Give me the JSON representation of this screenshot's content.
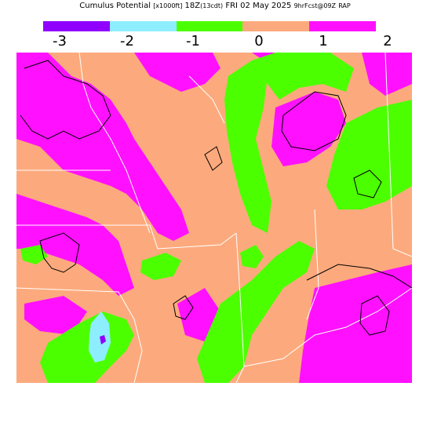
{
  "header": {
    "title": "Cumulus Potential",
    "units": "[x1000ft]",
    "valid_time": "18Z",
    "local_time": "(13cdt)",
    "date": "FRI 02 May 2025",
    "forecast": "9hrFcst@09Z",
    "model": "RAP"
  },
  "legend": {
    "ticks": [
      "-3",
      "-2",
      "-1",
      "0",
      "1",
      "2"
    ],
    "colors": [
      "#8f00ff",
      "#8deeff",
      "#4cff00",
      "#fcaa7d",
      "#ff11ff"
    ]
  },
  "map": {
    "fill_colors": {
      "background": "#fcaa7d",
      "magenta": "#ff11ff",
      "green": "#4cff00",
      "cyan": "#8deeff",
      "purple": "#8f00ff",
      "boundaries": "#ffffff",
      "contours": "#000000"
    }
  }
}
